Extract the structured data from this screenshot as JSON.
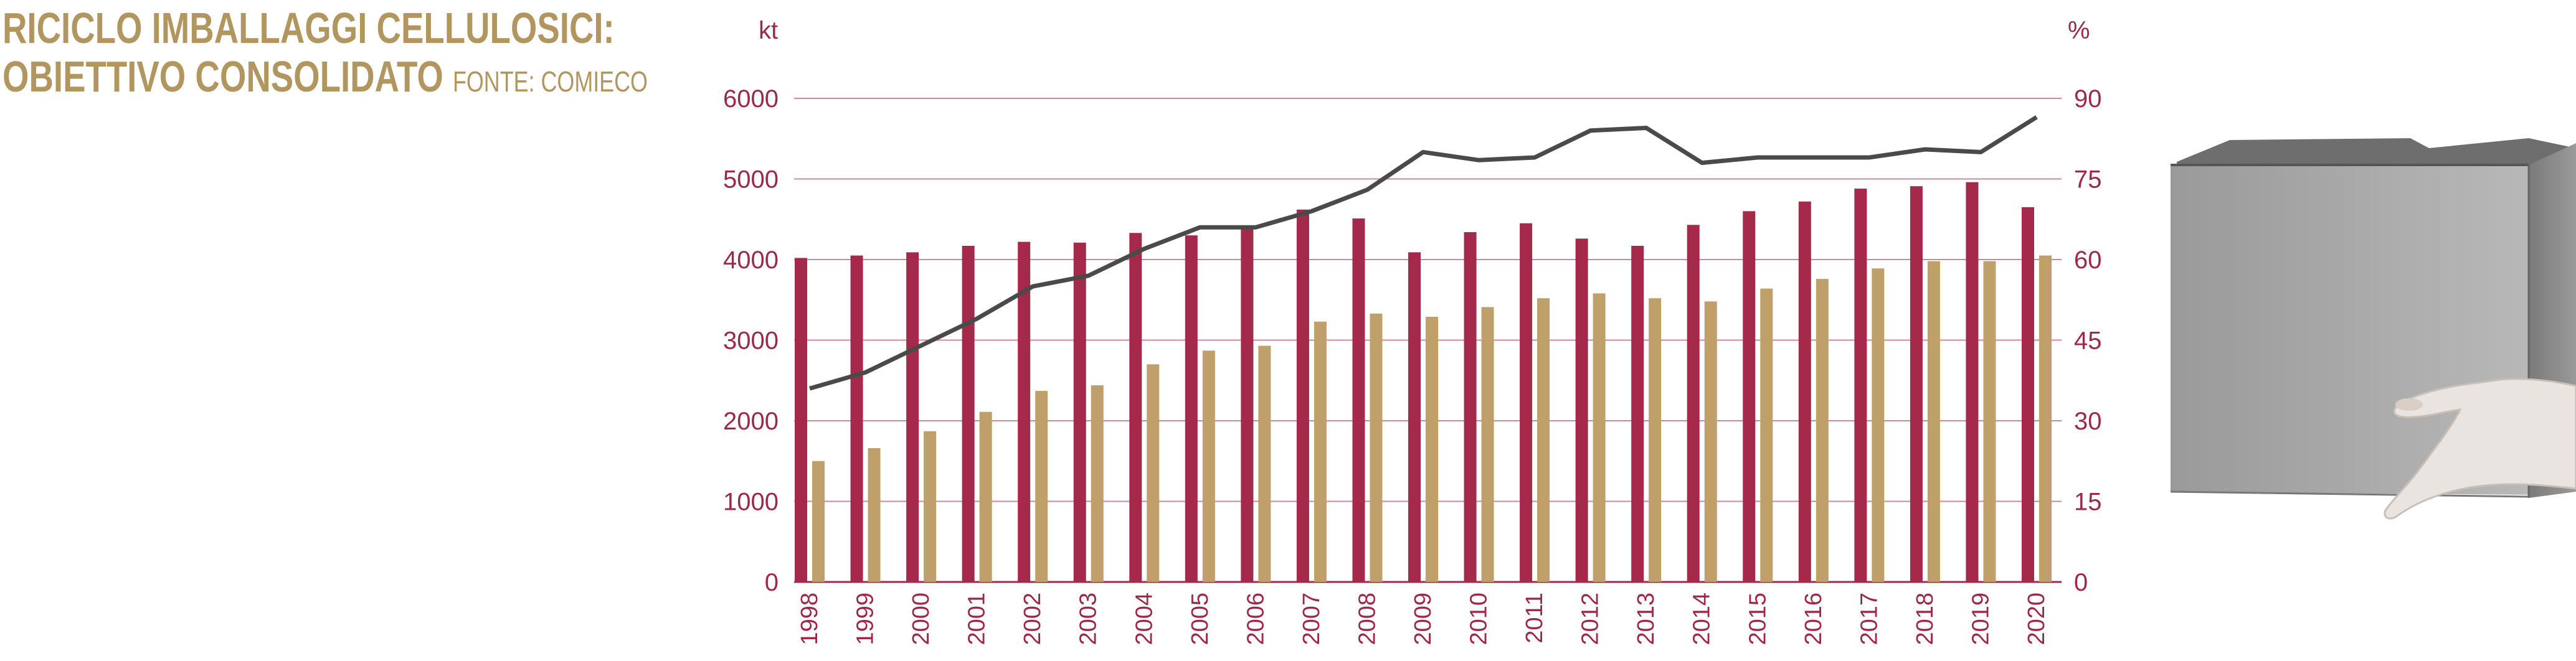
{
  "header": {
    "title_line1": "RICICLO IMBALLAGGI CELLULOSICI:",
    "title_line2": "OBIETTIVO CONSOLIDATO",
    "source": "FONTE: COMIECO"
  },
  "colors": {
    "title": "#b29660",
    "bar_series_1": "#a5294b",
    "bar_series_2": "#c0a06a",
    "line": "#4a4a4a",
    "axis": "#9a2a48",
    "grid": "#c98aa0"
  },
  "photo": {
    "icon": "cardboard-box-held-by-hand"
  },
  "chart_data": {
    "type": "bar",
    "left_unit": "kt",
    "right_unit": "%",
    "categories": [
      "1998",
      "1999",
      "2000",
      "2001",
      "2002",
      "2003",
      "2004",
      "2005",
      "2006",
      "2007",
      "2008",
      "2009",
      "2010",
      "2011",
      "2012",
      "2013",
      "2014",
      "2015",
      "2016",
      "2017",
      "2018",
      "2019",
      "2020"
    ],
    "series": [
      {
        "values": [
          4020,
          4050,
          4090,
          4170,
          4220,
          4210,
          4330,
          4300,
          4410,
          4620,
          4510,
          4090,
          4340,
          4450,
          4260,
          4170,
          4430,
          4600,
          4720,
          4880,
          4910,
          4960,
          4650
        ]
      },
      {
        "values": [
          1500,
          1660,
          1870,
          2110,
          2370,
          2440,
          2700,
          2870,
          2930,
          3230,
          3330,
          3290,
          3410,
          3520,
          3580,
          3520,
          3480,
          3640,
          3760,
          3890,
          3980,
          3980,
          4050
        ]
      },
      {
        "type": "line",
        "axis": "right",
        "values": [
          36,
          39,
          44,
          49,
          55,
          57,
          62,
          66,
          66,
          69,
          73,
          80,
          78.5,
          79,
          84,
          84.5,
          78,
          79,
          79,
          79,
          80.5,
          80,
          86.5
        ]
      }
    ],
    "y_left": {
      "range": [
        0,
        6000
      ],
      "ticks": [
        "0",
        "1000",
        "2000",
        "3000",
        "4000",
        "5000",
        "6000"
      ]
    },
    "y_right": {
      "range": [
        0,
        90
      ],
      "ticks": [
        "0",
        "15",
        "30",
        "45",
        "60",
        "75",
        "90"
      ]
    },
    "grid": true
  }
}
